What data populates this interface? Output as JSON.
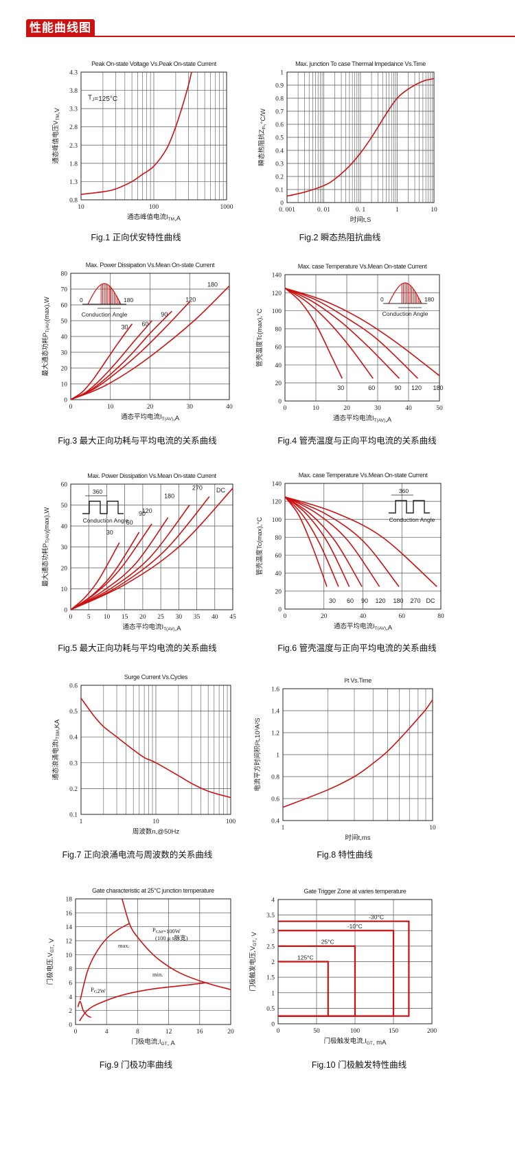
{
  "header": {
    "title": "性能曲线图"
  },
  "colors": {
    "accent": "#cc1111",
    "curve": "#cc1111",
    "grid": "#555555"
  },
  "chart_data": [
    {
      "id": "fig1",
      "type": "line",
      "title": "Peak On-state Voltage Vs.Peak On-state Current",
      "xlabel": "通态峰值电流I",
      "xsub": "TM",
      "xunit": ",A",
      "ylabel": "通态峰值电压V",
      "ysub": "TM",
      "yunit": ",V",
      "xscale": "log",
      "xlim": [
        10,
        1000
      ],
      "ylim": [
        0.8,
        4.3
      ],
      "xticks": [
        10,
        100,
        1000
      ],
      "xtick_labels": [
        "10",
        "100",
        "1000"
      ],
      "yticks": [
        0.8,
        1.3,
        1.8,
        2.3,
        2.8,
        3.3,
        3.8,
        4.3
      ],
      "ytick_labels": [
        "0.8",
        "1.3",
        "1.8",
        "2.3",
        "2.8",
        "3.3",
        "3.8",
        "4.3"
      ],
      "annotation": {
        "main": "T",
        "sub": "J",
        "rest": "=125°C"
      },
      "series": [
        {
          "name": "Tj=125°C",
          "x": [
            10,
            20,
            30,
            50,
            70,
            100,
            150,
            200,
            250,
            300,
            330
          ],
          "y": [
            0.95,
            1.02,
            1.1,
            1.3,
            1.5,
            1.72,
            2.2,
            2.8,
            3.4,
            3.95,
            4.3
          ]
        }
      ],
      "caption": "Fig.1  正向伏安特性曲线"
    },
    {
      "id": "fig2",
      "type": "line",
      "title": "Max. junction To case Thermal Impedance Vs.Time",
      "xlabel": "时间t",
      "xsub": "",
      "xunit": ",S",
      "ylabel": "瞬态热阻抗Z",
      "ysub": "th",
      "yunit": ",°C/W",
      "xscale": "log",
      "xlim": [
        0.001,
        10
      ],
      "ylim": [
        0,
        1
      ],
      "xticks": [
        0.001,
        0.01,
        0.1,
        1,
        10
      ],
      "xtick_labels": [
        "0. 001",
        "0. 01",
        "0. 1",
        "1",
        "10"
      ],
      "yticks": [
        0,
        0.1,
        0.2,
        0.3,
        0.4,
        0.5,
        0.6,
        0.7,
        0.8,
        0.9,
        1
      ],
      "ytick_labels": [
        "0",
        "0.1",
        "0.2",
        "0.3",
        "0.4",
        "0.5",
        "0.6",
        "0.7",
        "0.8",
        "0.9",
        "1"
      ],
      "series": [
        {
          "name": "Zth",
          "x": [
            0.001,
            0.003,
            0.01,
            0.02,
            0.05,
            0.1,
            0.2,
            0.5,
            1,
            2,
            5,
            10
          ],
          "y": [
            0.05,
            0.08,
            0.13,
            0.18,
            0.28,
            0.38,
            0.5,
            0.68,
            0.8,
            0.87,
            0.93,
            0.95
          ]
        }
      ],
      "caption": "Fig.2  瞬态热阻抗曲线"
    },
    {
      "id": "fig3",
      "type": "line",
      "title": "Max. Power Dissipation Vs.Mean On-state Current",
      "xlabel": "通态平均电流I",
      "xsub": "T(AV)",
      "xunit": ",A",
      "ylabel": "最大通态功耗P",
      "ysub": "T(AV)",
      "yunit": "(max),W",
      "xscale": "linear",
      "xlim": [
        0,
        40
      ],
      "ylim": [
        0,
        80
      ],
      "xticks": [
        0,
        10,
        20,
        30,
        40
      ],
      "xtick_labels": [
        "0",
        "10",
        "20",
        "30",
        "40"
      ],
      "yticks": [
        0,
        10,
        20,
        30,
        40,
        50,
        60,
        70,
        80
      ],
      "ytick_labels": [
        "0",
        "10",
        "20",
        "30",
        "40",
        "50",
        "60",
        "70",
        "80"
      ],
      "inset": {
        "type": "sine",
        "left": "0",
        "right": "180",
        "label": "Conduction Angle"
      },
      "series": [
        {
          "name": "30",
          "x": [
            0,
            3,
            6,
            9,
            12,
            15.5
          ],
          "y": [
            0,
            5,
            14,
            25,
            36,
            48
          ]
        },
        {
          "name": "60",
          "x": [
            0,
            4,
            8,
            12,
            16,
            20.5
          ],
          "y": [
            0,
            5,
            14,
            25,
            37,
            50
          ]
        },
        {
          "name": "90",
          "x": [
            0,
            5,
            10,
            15,
            20,
            25.5
          ],
          "y": [
            0,
            6,
            16,
            28,
            42,
            56
          ]
        },
        {
          "name": "120",
          "x": [
            0,
            6,
            12,
            18,
            24,
            30
          ],
          "y": [
            0,
            7,
            18,
            31,
            46,
            62
          ]
        },
        {
          "name": "180",
          "x": [
            0,
            8,
            16,
            24,
            32,
            40
          ],
          "y": [
            0,
            8,
            20,
            35,
            52,
            72
          ]
        }
      ],
      "caption": "Fig.3  最大正向功耗与平均电流的关系曲线"
    },
    {
      "id": "fig4",
      "type": "line",
      "title": "Max. case Temperature Vs.Mean On-state Current",
      "xlabel": "通态平均电流I",
      "xsub": "T(AV)",
      "xunit": ",A",
      "ylabel": "管壳温度Tc(max),°C",
      "ysub": "",
      "yunit": "",
      "xscale": "linear",
      "xlim": [
        0,
        50
      ],
      "ylim": [
        0,
        140
      ],
      "xticks": [
        0,
        10,
        20,
        30,
        40,
        50
      ],
      "xtick_labels": [
        "0",
        "10",
        "20",
        "30",
        "40",
        "50"
      ],
      "yticks": [
        0,
        20,
        40,
        60,
        80,
        100,
        120,
        140
      ],
      "ytick_labels": [
        "0",
        "20",
        "40",
        "60",
        "80",
        "100",
        "120",
        "140"
      ],
      "inset": {
        "type": "sine",
        "left": "0",
        "right": "180",
        "label": "Conduction Angle"
      },
      "series": [
        {
          "name": "30",
          "x": [
            0,
            5,
            10,
            15,
            18.5
          ],
          "y": [
            125,
            110,
            85,
            50,
            25
          ]
        },
        {
          "name": "60",
          "x": [
            0,
            7,
            14,
            21,
            28.5
          ],
          "y": [
            125,
            110,
            88,
            60,
            25
          ]
        },
        {
          "name": "90",
          "x": [
            0,
            9,
            18,
            27,
            37
          ],
          "y": [
            125,
            110,
            88,
            60,
            25
          ]
        },
        {
          "name": "120",
          "x": [
            0,
            10,
            20,
            30,
            43
          ],
          "y": [
            125,
            112,
            92,
            68,
            25
          ]
        },
        {
          "name": "180",
          "x": [
            0,
            12,
            24,
            36,
            50
          ],
          "y": [
            125,
            112,
            92,
            65,
            28
          ]
        }
      ],
      "caption": "Fig.4  管壳温度与正向平均电流的关系曲线"
    },
    {
      "id": "fig5",
      "type": "line",
      "title": "Max. Power Dissipation Vs.Mean On-state Current",
      "xlabel": "通态平均电流I",
      "xsub": "T(AV)",
      "xunit": ",A",
      "ylabel": "最大通态功耗P",
      "ysub": "T(AV)",
      "yunit": "(max),W",
      "xscale": "linear",
      "xlim": [
        0,
        45
      ],
      "ylim": [
        0,
        60
      ],
      "xticks": [
        0,
        5,
        10,
        15,
        20,
        25,
        30,
        35,
        40,
        45
      ],
      "xtick_labels": [
        "0",
        "5",
        "10",
        "15",
        "20",
        "25",
        "30",
        "35",
        "40",
        "45"
      ],
      "yticks": [
        0,
        10,
        20,
        30,
        40,
        50,
        60
      ],
      "ytick_labels": [
        "0",
        "10",
        "20",
        "30",
        "40",
        "50",
        "60"
      ],
      "inset": {
        "type": "square",
        "top": "360",
        "label": "Conduction Angle"
      },
      "series": [
        {
          "name": "30",
          "x": [
            0,
            4,
            8,
            13.5
          ],
          "y": [
            0,
            6,
            15,
            32
          ]
        },
        {
          "name": "60",
          "x": [
            0,
            6,
            12,
            19
          ],
          "y": [
            0,
            7,
            18,
            37
          ]
        },
        {
          "name": "90",
          "x": [
            0,
            7,
            14,
            22.5
          ],
          "y": [
            0,
            8,
            20,
            41
          ]
        },
        {
          "name": "120",
          "x": [
            0,
            9,
            18,
            27
          ],
          "y": [
            0,
            9,
            22,
            44
          ]
        },
        {
          "name": "180",
          "x": [
            0,
            11,
            22,
            33
          ],
          "y": [
            0,
            10,
            25,
            50
          ]
        },
        {
          "name": "270",
          "x": [
            0,
            13,
            26,
            38.5
          ],
          "y": [
            0,
            11,
            28,
            54
          ]
        },
        {
          "name": "DC",
          "x": [
            0,
            15,
            30,
            45
          ],
          "y": [
            0,
            12,
            30,
            58
          ]
        }
      ],
      "caption": "Fig.5  最大正向功耗与平均电流的关系曲线"
    },
    {
      "id": "fig6",
      "type": "line",
      "title": "Max. case Temperature Vs.Mean On-state Current",
      "xlabel": "通态平均电流I",
      "xsub": "T(AV)",
      "xunit": ",A",
      "ylabel": "管壳温度Tc(max),°C",
      "ysub": "",
      "yunit": "",
      "xscale": "linear",
      "xlim": [
        0,
        80
      ],
      "ylim": [
        0,
        140
      ],
      "xticks": [
        0,
        20,
        40,
        60,
        80
      ],
      "xtick_labels": [
        "0",
        "20",
        "40",
        "60",
        "80"
      ],
      "yticks": [
        0,
        20,
        40,
        60,
        80,
        100,
        120,
        140
      ],
      "ytick_labels": [
        "0",
        "20",
        "40",
        "60",
        "80",
        "100",
        "120",
        "140"
      ],
      "inset": {
        "type": "square",
        "top": "360",
        "label": "Conduction Angle"
      },
      "series": [
        {
          "name": "30",
          "x": [
            0,
            7,
            14,
            21.5
          ],
          "y": [
            125,
            105,
            70,
            25
          ]
        },
        {
          "name": "60",
          "x": [
            0,
            9,
            18,
            27.5
          ],
          "y": [
            125,
            105,
            72,
            25
          ]
        },
        {
          "name": "90",
          "x": [
            0,
            11,
            22,
            33
          ],
          "y": [
            125,
            106,
            74,
            25
          ]
        },
        {
          "name": "120",
          "x": [
            0,
            13,
            26,
            39.5
          ],
          "y": [
            125,
            106,
            75,
            25
          ]
        },
        {
          "name": "180",
          "x": [
            0,
            16,
            32,
            48.5
          ],
          "y": [
            125,
            107,
            77,
            25
          ]
        },
        {
          "name": "270",
          "x": [
            0,
            20,
            40,
            58.5
          ],
          "y": [
            125,
            107,
            76,
            25
          ]
        },
        {
          "name": "DC",
          "x": [
            0,
            25,
            50,
            78
          ],
          "y": [
            125,
            108,
            80,
            25
          ]
        }
      ],
      "caption": "Fig.6  管壳温度与正向平均电流的关系曲线"
    },
    {
      "id": "fig7",
      "type": "line",
      "title": "Surge Current Vs.Cycles",
      "xlabel": "周波数n,@50Hz",
      "xsub": "",
      "xunit": "",
      "ylabel": "通态浪涌电流I",
      "ysub": "TSM",
      "yunit": ",KA",
      "xscale": "log",
      "xlim": [
        1,
        100
      ],
      "ylim": [
        0.1,
        0.6
      ],
      "xticks": [
        1,
        10,
        100
      ],
      "xtick_labels": [
        "1",
        "10",
        "100"
      ],
      "yticks": [
        0.1,
        0.2,
        0.3,
        0.4,
        0.5,
        0.6
      ],
      "ytick_labels": [
        "0.1",
        "0.2",
        "0.3",
        "0.4",
        "0.5",
        "0.6"
      ],
      "series": [
        {
          "name": "Surge",
          "x": [
            1,
            1.5,
            2,
            3,
            5,
            7,
            10,
            20,
            30,
            50,
            100
          ],
          "y": [
            0.55,
            0.48,
            0.44,
            0.4,
            0.35,
            0.32,
            0.3,
            0.25,
            0.22,
            0.19,
            0.165
          ]
        }
      ],
      "caption": "Fig.7  正向浪涌电流与周波数的关系曲线"
    },
    {
      "id": "fig8",
      "type": "line",
      "title": "I²t  Vs.Time",
      "xlabel": "时间t,ms",
      "xsub": "",
      "xunit": "",
      "ylabel": "电流平方时间积I²t,10³A²S",
      "ysub": "",
      "yunit": "",
      "xscale": "log",
      "xlim": [
        1,
        10
      ],
      "ylim": [
        0.4,
        1.6
      ],
      "xticks": [
        1,
        10
      ],
      "xtick_labels": [
        "1",
        "10"
      ],
      "yticks": [
        0.4,
        0.6,
        0.8,
        1,
        1.2,
        1.4,
        1.6
      ],
      "ytick_labels": [
        "0.4",
        "0.6",
        "0.8",
        "1",
        "1.2",
        "1.4",
        "1.6"
      ],
      "series": [
        {
          "name": "I2t",
          "x": [
            1,
            2,
            3,
            4,
            5,
            6,
            7,
            8,
            9,
            10
          ],
          "y": [
            0.52,
            0.68,
            0.8,
            0.92,
            1.03,
            1.14,
            1.24,
            1.33,
            1.41,
            1.5
          ]
        }
      ],
      "caption": "Fig.8  特性曲线"
    },
    {
      "id": "fig9",
      "type": "line",
      "title": "Gate characteristic at 25°C junction temperature",
      "xlabel": "门极电流,I",
      "xsub": "GT",
      "xunit": ", A",
      "ylabel": "门极电压,V",
      "ysub": "GT",
      "yunit": ", V",
      "xscale": "linear",
      "xlim": [
        0,
        20
      ],
      "ylim": [
        0,
        18
      ],
      "xticks": [
        0,
        4,
        8,
        12,
        16,
        20
      ],
      "xtick_labels": [
        "0",
        "4",
        "8",
        "12",
        "16",
        "20"
      ],
      "yticks": [
        0,
        2,
        4,
        6,
        8,
        10,
        12,
        14,
        16,
        18
      ],
      "ytick_labels": [
        "0",
        "2",
        "4",
        "6",
        "8",
        "10",
        "12",
        "14",
        "16",
        "18"
      ],
      "labels": {
        "pgm": "P",
        "pgm_sub": "GM",
        "pgm_rest": "=100W",
        "pgm_note": "(100 μ s脉宽)",
        "pg": "P",
        "pg_sub": "G",
        "pg_rest": "2W",
        "max": "max.",
        "min": "min."
      },
      "series": [
        {
          "name": "P_GM=100W",
          "x": [
            6,
            7,
            8,
            10,
            12,
            14,
            17,
            20
          ],
          "y": [
            18,
            14.3,
            12.5,
            10,
            8.3,
            7.1,
            5.9,
            5.0
          ]
        },
        {
          "name": "max.",
          "x": [
            0.6,
            1.5,
            2.5,
            4,
            5.5,
            7
          ],
          "y": [
            3.5,
            7.5,
            10,
            12.3,
            13.6,
            14.5
          ]
        },
        {
          "name": "min.",
          "x": [
            0.5,
            1.5,
            3,
            6,
            10,
            14,
            17
          ],
          "y": [
            0.5,
            2.0,
            3.0,
            4.2,
            5.1,
            5.6,
            6.0
          ]
        },
        {
          "name": "P_G=2W",
          "x": [
            0.3,
            0.6,
            1,
            1.5,
            2
          ],
          "y": [
            2.5,
            3.3,
            2.0,
            1.3,
            1.0
          ]
        }
      ],
      "caption": "Fig.9  门极功率曲线"
    },
    {
      "id": "fig10",
      "type": "line",
      "title": "Gate Trigger Zone at varies temperature",
      "xlabel": "门极触发电流,I",
      "xsub": "GT",
      "xunit": ",  mA",
      "ylabel": "门极触发电压,V",
      "ysub": "GT",
      "yunit": ", V",
      "xscale": "linear",
      "xlim": [
        0,
        200
      ],
      "ylim": [
        0,
        4
      ],
      "xticks": [
        0,
        50,
        100,
        150,
        200
      ],
      "xtick_labels": [
        "0",
        "50",
        "100",
        "150",
        "200"
      ],
      "yticks": [
        0,
        0.5,
        1,
        1.5,
        2,
        2.5,
        3,
        3.5,
        4
      ],
      "ytick_labels": [
        "0",
        "0.5",
        "1",
        "1.5",
        "2",
        "2.5",
        "3",
        "3.5",
        "4"
      ],
      "zones": [
        {
          "name": "125°C",
          "x": 65,
          "y": 2.0
        },
        {
          "name": "25°C",
          "x": 100,
          "y": 2.5
        },
        {
          "name": "-10°C",
          "x": 150,
          "y": 3.0
        },
        {
          "name": "-30°C",
          "x": 170,
          "y": 3.3
        }
      ],
      "zone_floor": 0.25,
      "caption": "Fig.10  门极触发特性曲线"
    }
  ]
}
